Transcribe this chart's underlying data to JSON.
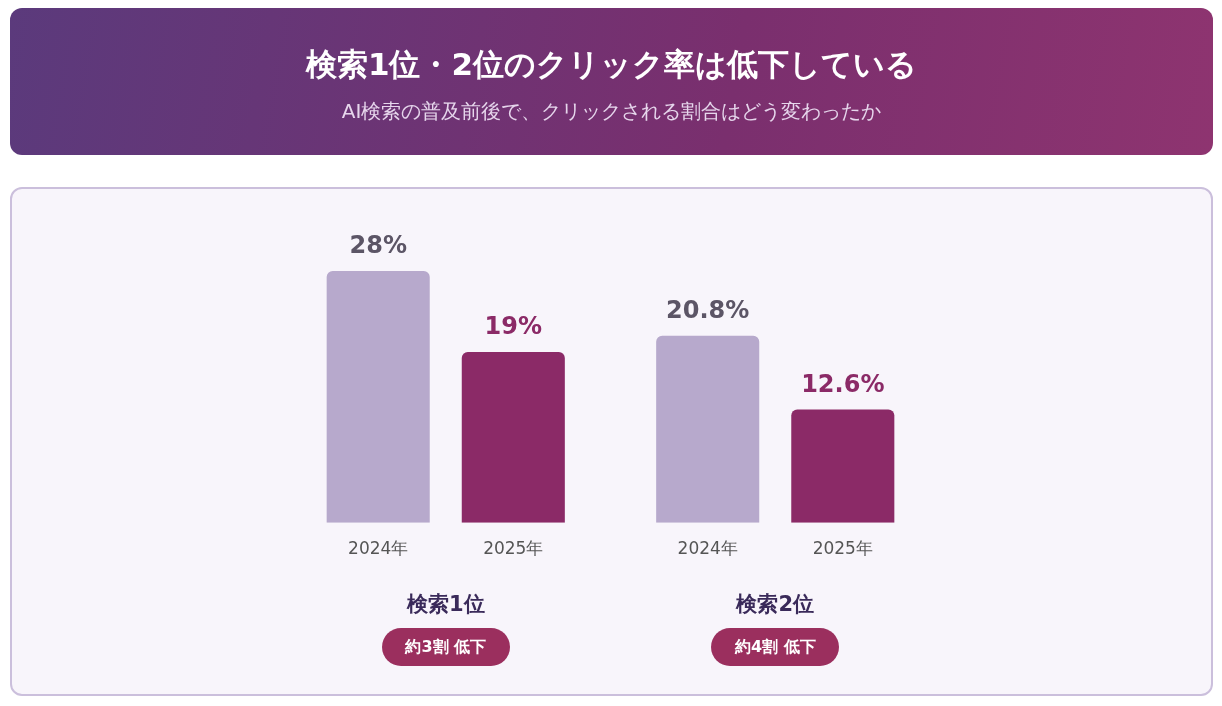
{
  "chart_data": {
    "type": "bar",
    "title": "検索1位・2位のクリック率は低下している",
    "subtitle": "AI検索の普及前後で、クリックされる割合はどう変わったか",
    "categories": [
      "検索1位",
      "検索2位"
    ],
    "series": [
      {
        "name": "2024年",
        "color": "#b7a9cc",
        "values": [
          28,
          20.8
        ],
        "value_labels": [
          "28%",
          "20.8%"
        ]
      },
      {
        "name": "2025年",
        "color": "#8b2a67",
        "values": [
          19,
          12.6
        ],
        "value_labels": [
          "19%",
          "12.6%"
        ]
      }
    ],
    "annotations": [
      "約3割 低下",
      "約4割 低下"
    ]
  }
}
